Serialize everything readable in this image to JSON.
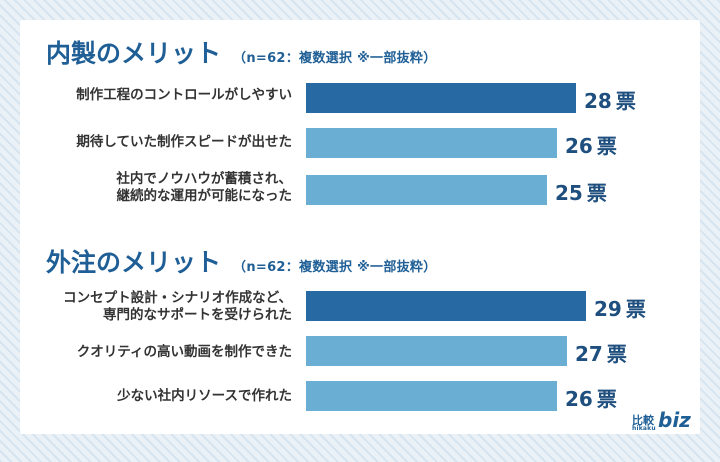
{
  "chart_data": [
    {
      "type": "bar",
      "orientation": "horizontal",
      "title": "内製のメリット",
      "note": "（n=62：複数選択 ※一部抜粋）",
      "unit": "票",
      "categories": [
        "制作工程のコントロールがしやすい",
        "期待していた制作スピードが出せた",
        "社内でノウハウが蓄積され、\n継続的な運用が可能になった"
      ],
      "values": [
        28,
        26,
        25
      ],
      "highlight_index": 0,
      "colors": {
        "highlight": "#276aa3",
        "normal": "#6aaed4"
      }
    },
    {
      "type": "bar",
      "orientation": "horizontal",
      "title": "外注のメリット",
      "note": "（n=62：複数選択 ※一部抜粋）",
      "unit": "票",
      "categories": [
        "コンセプト設計・シナリオ作成など、\n専門的なサポートを受けられた",
        "クオリティの高い動画を制作できた",
        "少ない社内リソースで作れた"
      ],
      "values": [
        29,
        27,
        26
      ],
      "highlight_index": 0,
      "colors": {
        "highlight": "#276aa3",
        "normal": "#6aaed4"
      }
    }
  ],
  "logo": {
    "kanji": "比較",
    "sub": "hikaku",
    "biz": "biz"
  }
}
